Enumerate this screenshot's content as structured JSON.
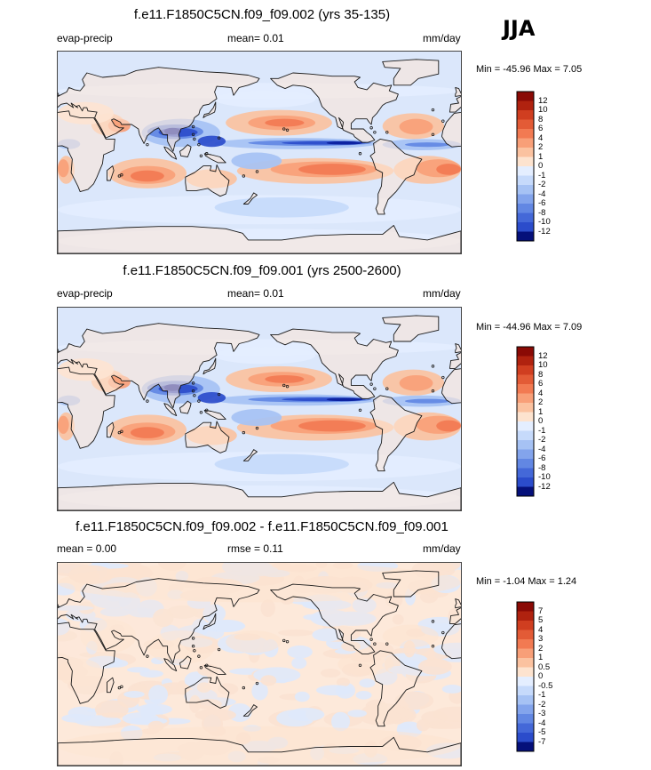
{
  "season": "JJA",
  "colors": {
    "coast": "#1a1a1a",
    "pos": [
      "#fde3cf",
      "#fbc2a0",
      "#f89f78",
      "#f27a52",
      "#e35b36",
      "#d03e20",
      "#b0220f",
      "#8a0a05"
    ],
    "neg": [
      "#e4eeff",
      "#c6dafb",
      "#a6c2f4",
      "#83a4ec",
      "#6287e3",
      "#4468d8",
      "#2b4ccb",
      "#1a33b8",
      "#0b1f9e",
      "#05107a"
    ]
  },
  "panels": [
    {
      "id": "case1",
      "title": "f.e11.F1850C5CN.f09_f09.002 (yrs 35-135)",
      "left_label": "evap-precip",
      "center_label": "mean=  0.01",
      "units": "mm/day",
      "minmax": "Min = -45.96 Max =  7.05",
      "colorbar_ticks": [
        "12",
        "10",
        "8",
        "6",
        "4",
        "2",
        "1",
        "0",
        "-1",
        "-2",
        "-4",
        "-6",
        "-8",
        "-10",
        "-12"
      ]
    },
    {
      "id": "case2",
      "title": "f.e11.F1850C5CN.f09_f09.001 (yrs 2500-2600)",
      "left_label": "evap-precip",
      "center_label": "mean=  0.01",
      "units": "mm/day",
      "minmax": "Min = -44.96 Max =  7.09",
      "colorbar_ticks": [
        "12",
        "10",
        "8",
        "6",
        "4",
        "2",
        "1",
        "0",
        "-1",
        "-2",
        "-4",
        "-6",
        "-8",
        "-10",
        "-12"
      ]
    },
    {
      "id": "diff",
      "title": "f.e11.F1850C5CN.f09_f09.002 - f.e11.F1850C5CN.f09_f09.001",
      "left_label": "mean =  0.00",
      "center_label": "rmse =  0.11",
      "units": "mm/day",
      "minmax": "Min = -1.04 Max =  1.24",
      "colorbar_ticks": [
        "7",
        "5",
        "4",
        "3",
        "2",
        "1",
        "0.5",
        "0",
        "-0.5",
        "-1",
        "-2",
        "-3",
        "-4",
        "-5",
        "-7"
      ]
    }
  ],
  "chart_data": [
    {
      "type": "heatmap",
      "title": "f.e11.F1850C5CN.f09_f09.002 (yrs 35-135)",
      "variable": "evap-precip",
      "units": "mm/day",
      "mean": 0.01,
      "min": -45.96,
      "max": 7.05,
      "levels": [
        -12,
        -10,
        -8,
        -6,
        -4,
        -2,
        -1,
        0,
        1,
        2,
        4,
        6,
        8,
        10,
        12
      ],
      "projection": "cylindrical equidistant, centered 180E"
    },
    {
      "type": "heatmap",
      "title": "f.e11.F1850C5CN.f09_f09.001 (yrs 2500-2600)",
      "variable": "evap-precip",
      "units": "mm/day",
      "mean": 0.01,
      "min": -44.96,
      "max": 7.09,
      "levels": [
        -12,
        -10,
        -8,
        -6,
        -4,
        -2,
        -1,
        0,
        1,
        2,
        4,
        6,
        8,
        10,
        12
      ],
      "projection": "cylindrical equidistant, centered 180E"
    },
    {
      "type": "heatmap",
      "title": "f.e11.F1850C5CN.f09_f09.002 - f.e11.F1850C5CN.f09_f09.001",
      "variable": "evap-precip difference",
      "units": "mm/day",
      "mean": 0.0,
      "rmse": 0.11,
      "min": -1.04,
      "max": 1.24,
      "levels": [
        -7,
        -5,
        -4,
        -3,
        -2,
        -1,
        -0.5,
        0,
        0.5,
        1,
        2,
        3,
        4,
        5,
        7
      ],
      "projection": "cylindrical equidistant, centered 180E"
    }
  ]
}
